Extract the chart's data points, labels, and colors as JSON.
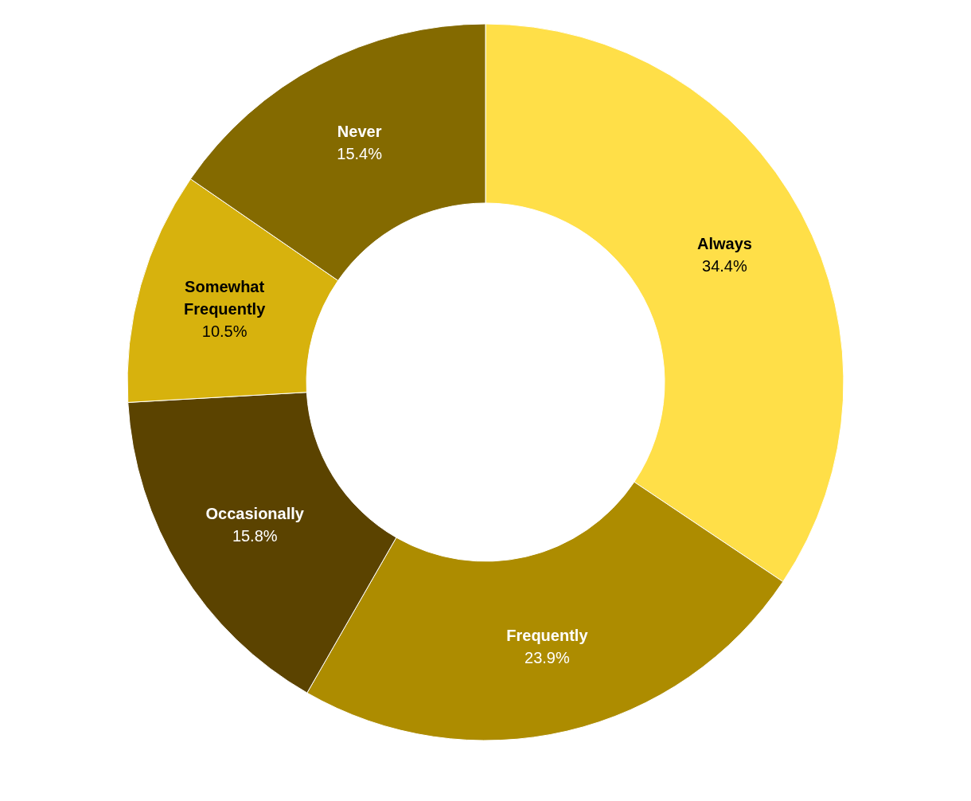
{
  "chart_data": {
    "type": "donut",
    "categories": [
      "Always",
      "Frequently",
      "Occasionally",
      "Somewhat Frequently",
      "Never"
    ],
    "values": [
      34.4,
      23.9,
      15.8,
      10.5,
      15.4
    ],
    "value_labels": [
      "34.4%",
      "23.9%",
      "15.8%",
      "10.5%",
      "15.4%"
    ],
    "colors": [
      "#ffdf48",
      "#ad8c00",
      "#5b4300",
      "#d7b20d",
      "#846a00"
    ],
    "legend": false
  }
}
